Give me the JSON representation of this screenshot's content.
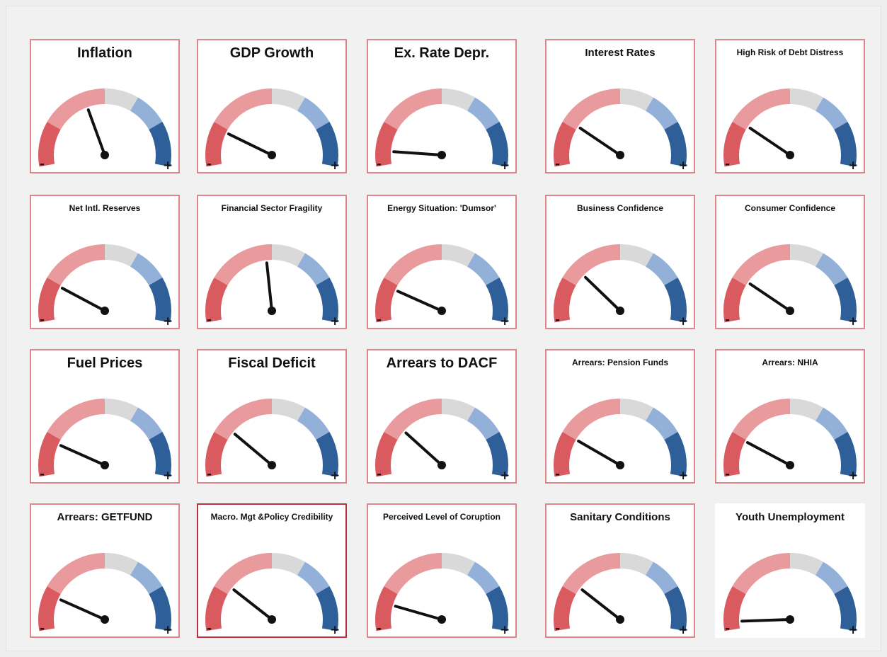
{
  "colors": {
    "seg1": "#d95b5f",
    "seg2": "#e99a9d",
    "seg3": "#d9d9d9",
    "seg4": "#93b0d9",
    "seg5": "#2f5f98",
    "needle": "#111111",
    "tile_border": "#e0868a"
  },
  "chart_data": {
    "type": "gauge",
    "scale": {
      "min": 0,
      "max": 1,
      "min_label": "-",
      "max_label": "+"
    },
    "segments": [
      {
        "from": 0.0,
        "to": 0.2,
        "color": "#d95b5f"
      },
      {
        "from": 0.2,
        "to": 0.5,
        "color": "#e99a9d"
      },
      {
        "from": 0.5,
        "to": 0.65,
        "color": "#d9d9d9"
      },
      {
        "from": 0.65,
        "to": 0.8,
        "color": "#93b0d9"
      },
      {
        "from": 0.8,
        "to": 1.0,
        "color": "#2f5f98"
      }
    ],
    "gauges": [
      {
        "title": "Inflation",
        "value": 0.4
      },
      {
        "title": "GDP Growth",
        "value": 0.18
      },
      {
        "title": "Ex. Rate Depr.",
        "value": 0.07
      },
      {
        "title": "Interest Rates",
        "value": 0.22
      },
      {
        "title": "High Risk of Debt Distress",
        "value": 0.22
      },
      {
        "title": "Net Intl. Reserves",
        "value": 0.19
      },
      {
        "title": "Financial Sector Fragility",
        "value": 0.47
      },
      {
        "title": "Energy Situation: 'Dumsor'",
        "value": 0.17
      },
      {
        "title": "Business Confidence",
        "value": 0.27
      },
      {
        "title": "Consumer Confidence",
        "value": 0.22
      },
      {
        "title": "Fuel Prices",
        "value": 0.17
      },
      {
        "title": "Fiscal Deficit",
        "value": 0.25
      },
      {
        "title": "Arrears to DACF",
        "value": 0.26
      },
      {
        "title": "Arrears: Pension Funds",
        "value": 0.2
      },
      {
        "title": "Arrears: NHIA",
        "value": 0.19
      },
      {
        "title": "Arrears: GETFUND",
        "value": 0.17
      },
      {
        "title": "Macro. Mgt &Policy Credibility",
        "value": 0.24
      },
      {
        "title": "Perceived Level of Coruption",
        "value": 0.13
      },
      {
        "title": "Sanitary Conditions",
        "value": 0.24
      },
      {
        "title": "Youth Unemployment",
        "value": 0.04
      }
    ]
  }
}
